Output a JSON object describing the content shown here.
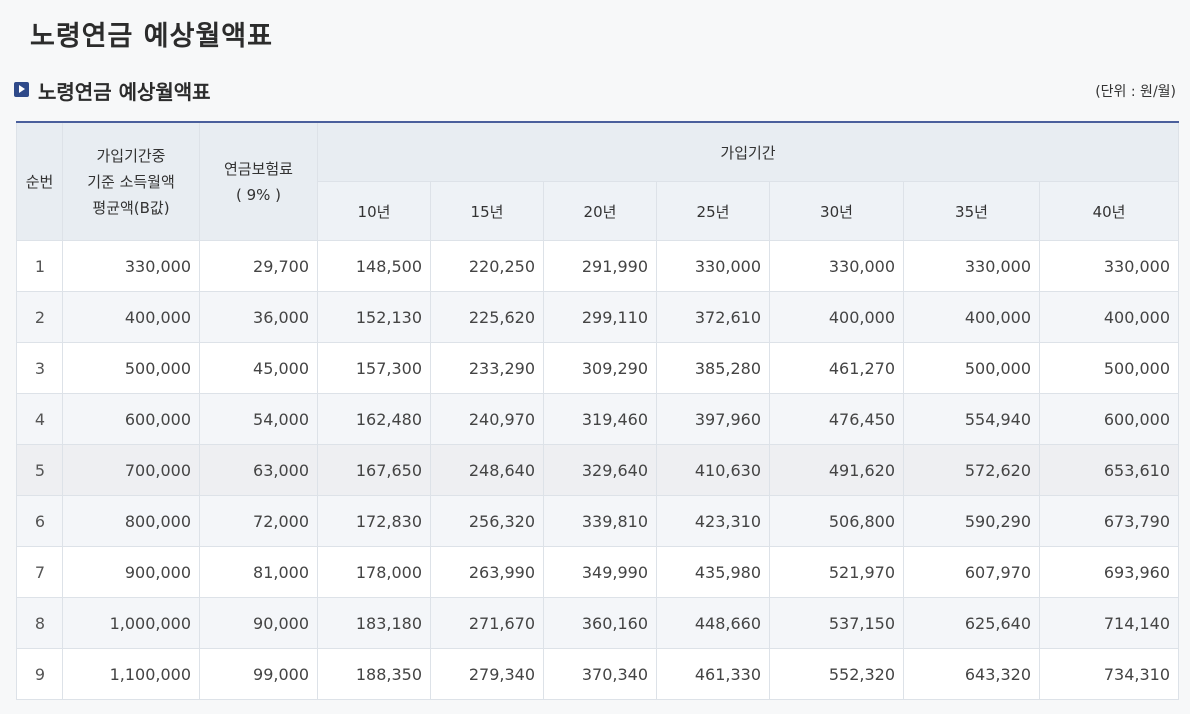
{
  "page": {
    "title": "노령연금 예상월액표"
  },
  "section": {
    "title": "노령연금 예상월액표",
    "unit": "(단위 : 원/월)"
  },
  "table": {
    "header": {
      "seq": "순번",
      "income_lines": [
        "가입기간중",
        "기준 소득월액",
        "평균액(B값)"
      ],
      "premium_lines": [
        "연금보험료",
        "( 9% )"
      ],
      "period_group": "가입기간",
      "periods": [
        "10년",
        "15년",
        "20년",
        "25년",
        "30년",
        "35년",
        "40년"
      ]
    },
    "rows": [
      {
        "no": "1",
        "income": "330,000",
        "premium": "29,700",
        "values": [
          "148,500",
          "220,250",
          "291,990",
          "330,000",
          "330,000",
          "330,000",
          "330,000"
        ]
      },
      {
        "no": "2",
        "income": "400,000",
        "premium": "36,000",
        "values": [
          "152,130",
          "225,620",
          "299,110",
          "372,610",
          "400,000",
          "400,000",
          "400,000"
        ]
      },
      {
        "no": "3",
        "income": "500,000",
        "premium": "45,000",
        "values": [
          "157,300",
          "233,290",
          "309,290",
          "385,280",
          "461,270",
          "500,000",
          "500,000"
        ]
      },
      {
        "no": "4",
        "income": "600,000",
        "premium": "54,000",
        "values": [
          "162,480",
          "240,970",
          "319,460",
          "397,960",
          "476,450",
          "554,940",
          "600,000"
        ]
      },
      {
        "no": "5",
        "income": "700,000",
        "premium": "63,000",
        "values": [
          "167,650",
          "248,640",
          "329,640",
          "410,630",
          "491,620",
          "572,620",
          "653,610"
        ]
      },
      {
        "no": "6",
        "income": "800,000",
        "premium": "72,000",
        "values": [
          "172,830",
          "256,320",
          "339,810",
          "423,310",
          "506,800",
          "590,290",
          "673,790"
        ]
      },
      {
        "no": "7",
        "income": "900,000",
        "premium": "81,000",
        "values": [
          "178,000",
          "263,990",
          "349,990",
          "435,980",
          "521,970",
          "607,970",
          "693,960"
        ]
      },
      {
        "no": "8",
        "income": "1,000,000",
        "premium": "90,000",
        "values": [
          "183,180",
          "271,670",
          "360,160",
          "448,660",
          "537,150",
          "625,640",
          "714,140"
        ]
      },
      {
        "no": "9",
        "income": "1,100,000",
        "premium": "99,000",
        "values": [
          "188,350",
          "279,340",
          "370,340",
          "461,330",
          "552,320",
          "643,320",
          "734,310"
        ]
      }
    ]
  },
  "colors": {
    "accent": "#4a5f9c",
    "header_bg": "#e8edf2",
    "icon_bg": "#2f4a8a"
  }
}
